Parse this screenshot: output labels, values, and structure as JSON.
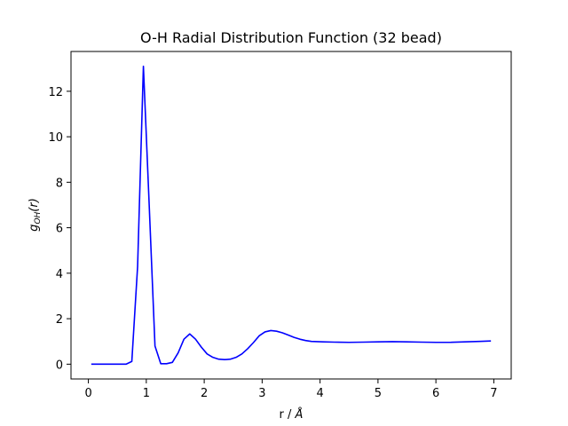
{
  "chart_data": {
    "type": "line",
    "title": "O-H Radial Distribution Function (32 bead)",
    "xlabel_prefix": "r / ",
    "xlabel_unit": "Å",
    "ylabel_main": "g",
    "ylabel_sub": "OH",
    "ylabel_arg": "(r)",
    "xlim": [
      -0.3,
      7.3
    ],
    "ylim": [
      -0.65,
      13.75
    ],
    "xticks": [
      0,
      1,
      2,
      3,
      4,
      5,
      6,
      7
    ],
    "yticks": [
      0,
      2,
      4,
      6,
      8,
      10,
      12
    ],
    "grid": false,
    "line_color": "#0000ff",
    "series": [
      {
        "x": [
          0.05,
          0.15,
          0.25,
          0.35,
          0.45,
          0.55,
          0.65,
          0.75,
          0.85,
          0.95,
          1.05,
          1.15,
          1.25,
          1.35,
          1.45,
          1.55,
          1.65,
          1.75,
          1.85,
          1.95,
          2.05,
          2.15,
          2.25,
          2.35,
          2.45,
          2.55,
          2.65,
          2.75,
          2.85,
          2.95,
          3.05,
          3.15,
          3.25,
          3.35,
          3.45,
          3.55,
          3.65,
          3.75,
          3.85,
          3.95,
          4.05,
          4.25,
          4.5,
          4.75,
          5.0,
          5.25,
          5.5,
          5.75,
          6.0,
          6.25,
          6.5,
          6.75,
          6.95
        ],
        "y": [
          0.0,
          0.0,
          0.0,
          0.0,
          0.0,
          0.0,
          0.0,
          0.12,
          4.3,
          13.1,
          7.0,
          0.8,
          0.02,
          0.02,
          0.08,
          0.5,
          1.1,
          1.33,
          1.1,
          0.75,
          0.45,
          0.3,
          0.22,
          0.2,
          0.22,
          0.3,
          0.45,
          0.68,
          0.95,
          1.25,
          1.42,
          1.48,
          1.45,
          1.38,
          1.28,
          1.18,
          1.1,
          1.04,
          1.0,
          0.99,
          0.98,
          0.97,
          0.96,
          0.97,
          0.98,
          0.99,
          0.98,
          0.97,
          0.96,
          0.96,
          0.98,
          1.0,
          1.02
        ]
      }
    ]
  }
}
